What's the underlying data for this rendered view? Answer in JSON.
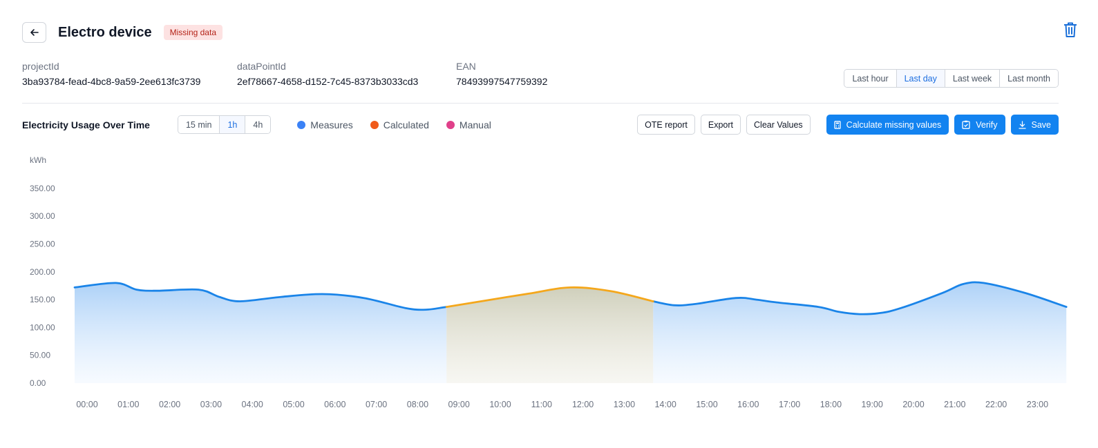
{
  "header": {
    "title": "Electro device",
    "badge": "Missing data"
  },
  "meta": [
    {
      "label": "projectId",
      "value": "3ba93784-fead-4bc8-9a59-2ee613fc3739"
    },
    {
      "label": "dataPointId",
      "value": "2ef78667-4658-d152-7c45-8373b3033cd3"
    },
    {
      "label": "EAN",
      "value": "78493997547759392"
    }
  ],
  "range": {
    "options": [
      "Last hour",
      "Last day",
      "Last week",
      "Last month"
    ],
    "selected": "Last day"
  },
  "toolbar": {
    "chart_title": "Electricity Usage Over Time",
    "granularity": {
      "options": [
        "15 min",
        "1h",
        "4h"
      ],
      "selected": "1h"
    },
    "legend": [
      {
        "label": "Measures",
        "color": "#3b82f6"
      },
      {
        "label": "Calculated",
        "color": "#f05a1a"
      },
      {
        "label": "Manual",
        "color": "#e0408a"
      }
    ],
    "actions": {
      "ote_report": "OTE report",
      "export": "Export",
      "clear_values": "Clear Values",
      "calculate_missing": "Calculate missing values",
      "verify": "Verify",
      "save": "Save"
    }
  },
  "icons": {
    "back": "arrow-left-icon",
    "delete": "trash-icon",
    "calculate": "calculator-icon",
    "verify": "clipboard-check-icon",
    "save": "download-icon"
  },
  "colors": {
    "primary": "#1383f0",
    "measured_line": "#1a84e8",
    "calculated_line": "#f4a71c"
  },
  "chart_data": {
    "type": "area",
    "unit_label": "kWh",
    "x": [
      "00:00",
      "01:00",
      "02:00",
      "03:00",
      "04:00",
      "05:00",
      "06:00",
      "07:00",
      "08:00",
      "09:00",
      "10:00",
      "11:00",
      "12:00",
      "13:00",
      "14:00",
      "15:00",
      "16:00",
      "17:00",
      "18:00",
      "19:00",
      "20:00",
      "21:00",
      "22:00",
      "23:00"
    ],
    "ylim": [
      0,
      350
    ],
    "y_ticks": [
      "0.00",
      "50.00",
      "100.00",
      "150.00",
      "200.00",
      "250.00",
      "300.00",
      "350.00"
    ],
    "series": [
      {
        "name": "Measures",
        "points": [
          [
            0,
            172
          ],
          [
            1,
            180
          ],
          [
            1.5,
            168
          ],
          [
            2,
            166
          ],
          [
            3,
            168
          ],
          [
            3.5,
            155
          ],
          [
            4,
            147
          ],
          [
            5,
            155
          ],
          [
            6,
            160
          ],
          [
            7,
            153
          ],
          [
            8,
            135
          ],
          [
            8.5,
            132
          ],
          [
            9,
            137
          ]
        ],
        "points2": [
          [
            14,
            147
          ],
          [
            14.5,
            140
          ],
          [
            15,
            142
          ],
          [
            16,
            153
          ],
          [
            16.5,
            150
          ],
          [
            17,
            145
          ],
          [
            18,
            137
          ],
          [
            18.5,
            128
          ],
          [
            19,
            124
          ],
          [
            19.5,
            126
          ],
          [
            20,
            135
          ],
          [
            21,
            162
          ],
          [
            21.5,
            178
          ],
          [
            22,
            180
          ],
          [
            23,
            162
          ],
          [
            24,
            137
          ]
        ]
      },
      {
        "name": "Calculated",
        "points": [
          [
            9,
            137
          ],
          [
            10,
            149
          ],
          [
            11,
            161
          ],
          [
            12,
            172
          ],
          [
            13,
            165
          ],
          [
            14,
            147
          ]
        ]
      }
    ],
    "grid": false,
    "legend_position": "top"
  }
}
